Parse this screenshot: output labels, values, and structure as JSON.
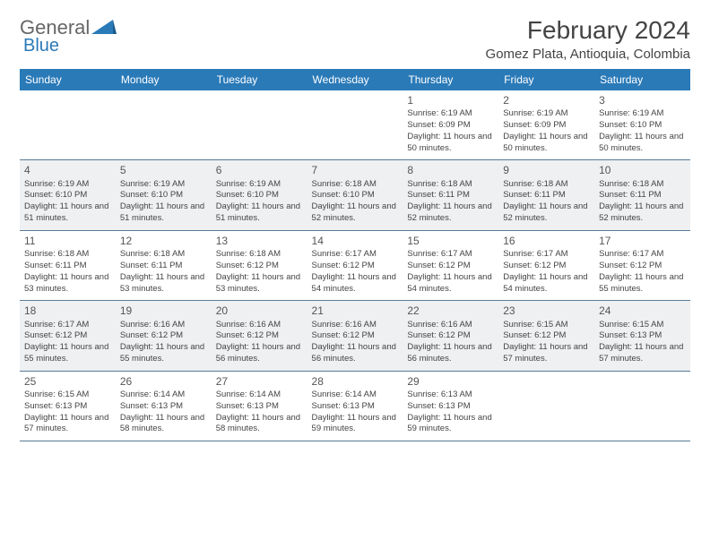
{
  "logo": {
    "text1": "General",
    "text2": "Blue"
  },
  "title": "February 2024",
  "location": "Gomez Plata, Antioquia, Colombia",
  "day_headers": [
    "Sunday",
    "Monday",
    "Tuesday",
    "Wednesday",
    "Thursday",
    "Friday",
    "Saturday"
  ],
  "colors": {
    "header_bg": "#2a7ab8",
    "header_fg": "#ffffff",
    "row_alt_bg": "#eef0f2",
    "border": "#5a7a95",
    "text": "#444444"
  },
  "first_weekday": 4,
  "days": [
    {
      "n": 1,
      "sr": "6:19 AM",
      "ss": "6:09 PM",
      "dl": "11 hours and 50 minutes."
    },
    {
      "n": 2,
      "sr": "6:19 AM",
      "ss": "6:09 PM",
      "dl": "11 hours and 50 minutes."
    },
    {
      "n": 3,
      "sr": "6:19 AM",
      "ss": "6:10 PM",
      "dl": "11 hours and 50 minutes."
    },
    {
      "n": 4,
      "sr": "6:19 AM",
      "ss": "6:10 PM",
      "dl": "11 hours and 51 minutes."
    },
    {
      "n": 5,
      "sr": "6:19 AM",
      "ss": "6:10 PM",
      "dl": "11 hours and 51 minutes."
    },
    {
      "n": 6,
      "sr": "6:19 AM",
      "ss": "6:10 PM",
      "dl": "11 hours and 51 minutes."
    },
    {
      "n": 7,
      "sr": "6:18 AM",
      "ss": "6:10 PM",
      "dl": "11 hours and 52 minutes."
    },
    {
      "n": 8,
      "sr": "6:18 AM",
      "ss": "6:11 PM",
      "dl": "11 hours and 52 minutes."
    },
    {
      "n": 9,
      "sr": "6:18 AM",
      "ss": "6:11 PM",
      "dl": "11 hours and 52 minutes."
    },
    {
      "n": 10,
      "sr": "6:18 AM",
      "ss": "6:11 PM",
      "dl": "11 hours and 52 minutes."
    },
    {
      "n": 11,
      "sr": "6:18 AM",
      "ss": "6:11 PM",
      "dl": "11 hours and 53 minutes."
    },
    {
      "n": 12,
      "sr": "6:18 AM",
      "ss": "6:11 PM",
      "dl": "11 hours and 53 minutes."
    },
    {
      "n": 13,
      "sr": "6:18 AM",
      "ss": "6:12 PM",
      "dl": "11 hours and 53 minutes."
    },
    {
      "n": 14,
      "sr": "6:17 AM",
      "ss": "6:12 PM",
      "dl": "11 hours and 54 minutes."
    },
    {
      "n": 15,
      "sr": "6:17 AM",
      "ss": "6:12 PM",
      "dl": "11 hours and 54 minutes."
    },
    {
      "n": 16,
      "sr": "6:17 AM",
      "ss": "6:12 PM",
      "dl": "11 hours and 54 minutes."
    },
    {
      "n": 17,
      "sr": "6:17 AM",
      "ss": "6:12 PM",
      "dl": "11 hours and 55 minutes."
    },
    {
      "n": 18,
      "sr": "6:17 AM",
      "ss": "6:12 PM",
      "dl": "11 hours and 55 minutes."
    },
    {
      "n": 19,
      "sr": "6:16 AM",
      "ss": "6:12 PM",
      "dl": "11 hours and 55 minutes."
    },
    {
      "n": 20,
      "sr": "6:16 AM",
      "ss": "6:12 PM",
      "dl": "11 hours and 56 minutes."
    },
    {
      "n": 21,
      "sr": "6:16 AM",
      "ss": "6:12 PM",
      "dl": "11 hours and 56 minutes."
    },
    {
      "n": 22,
      "sr": "6:16 AM",
      "ss": "6:12 PM",
      "dl": "11 hours and 56 minutes."
    },
    {
      "n": 23,
      "sr": "6:15 AM",
      "ss": "6:12 PM",
      "dl": "11 hours and 57 minutes."
    },
    {
      "n": 24,
      "sr": "6:15 AM",
      "ss": "6:13 PM",
      "dl": "11 hours and 57 minutes."
    },
    {
      "n": 25,
      "sr": "6:15 AM",
      "ss": "6:13 PM",
      "dl": "11 hours and 57 minutes."
    },
    {
      "n": 26,
      "sr": "6:14 AM",
      "ss": "6:13 PM",
      "dl": "11 hours and 58 minutes."
    },
    {
      "n": 27,
      "sr": "6:14 AM",
      "ss": "6:13 PM",
      "dl": "11 hours and 58 minutes."
    },
    {
      "n": 28,
      "sr": "6:14 AM",
      "ss": "6:13 PM",
      "dl": "11 hours and 59 minutes."
    },
    {
      "n": 29,
      "sr": "6:13 AM",
      "ss": "6:13 PM",
      "dl": "11 hours and 59 minutes."
    }
  ],
  "labels": {
    "sunrise": "Sunrise: ",
    "sunset": "Sunset: ",
    "daylight": "Daylight: "
  }
}
